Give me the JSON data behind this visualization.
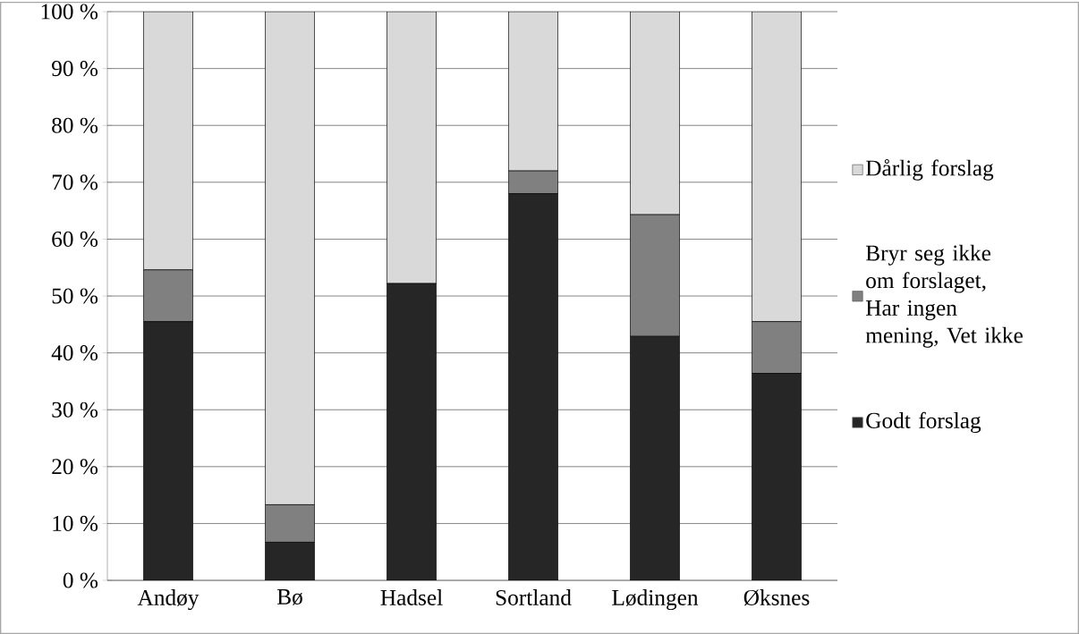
{
  "chart_data": {
    "type": "bar",
    "stacked": true,
    "categories": [
      "Andøy",
      "Bø",
      "Hadsel",
      "Sortland",
      "Lødingen",
      "Øksnes"
    ],
    "series": [
      {
        "name": "Godt forslag",
        "color": "#262626",
        "values": [
          45.5,
          6.7,
          52.2,
          68,
          42.9,
          36.4
        ]
      },
      {
        "name": "Bryr seg ikke om forslaget, Har ingen mening, Vet ikke",
        "color": "#808080",
        "values": [
          9.1,
          6.6,
          0,
          4,
          21.4,
          9.1
        ]
      },
      {
        "name": "Dårlig forslag",
        "color": "#d9d9d9",
        "values": [
          45.4,
          86.7,
          47.8,
          28,
          35.7,
          54.5
        ]
      }
    ],
    "ylim": [
      0,
      100
    ],
    "yticks": [
      {
        "value": 0,
        "label": "0 %"
      },
      {
        "value": 10,
        "label": "10 %"
      },
      {
        "value": 20,
        "label": "20 %"
      },
      {
        "value": 30,
        "label": "30 %"
      },
      {
        "value": 40,
        "label": "40 %"
      },
      {
        "value": 50,
        "label": "50 %"
      },
      {
        "value": 60,
        "label": "60 %"
      },
      {
        "value": 70,
        "label": "70 %"
      },
      {
        "value": 80,
        "label": "80 %"
      },
      {
        "value": 90,
        "label": "90 %"
      },
      {
        "value": 100,
        "label": "100 %"
      }
    ],
    "grid": "y",
    "legend": "right"
  }
}
